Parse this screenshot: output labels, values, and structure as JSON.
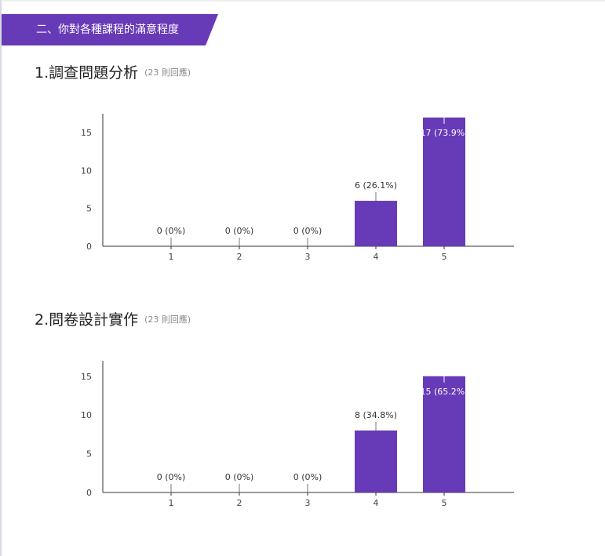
{
  "section": {
    "title": "二、你對各種課程的滿意程度"
  },
  "colors": {
    "accent": "#673ab7"
  },
  "questions": [
    {
      "title": "1.調查問題分析",
      "responses": "(23 則回應)"
    },
    {
      "title": "2.問卷設計實作",
      "responses": "(23 則回應)"
    }
  ],
  "chart_data": [
    {
      "type": "bar",
      "categories": [
        "1",
        "2",
        "3",
        "4",
        "5"
      ],
      "values": [
        0,
        0,
        0,
        6,
        17
      ],
      "labels": [
        "0 (0%)",
        "0 (0%)",
        "0 (0%)",
        "6 (26.1%)",
        "17 (73.9%)"
      ],
      "yticks": [
        0,
        5,
        10,
        15
      ],
      "ylim": [
        0,
        17.5
      ]
    },
    {
      "type": "bar",
      "categories": [
        "1",
        "2",
        "3",
        "4",
        "5"
      ],
      "values": [
        0,
        0,
        0,
        8,
        15
      ],
      "labels": [
        "0 (0%)",
        "0 (0%)",
        "0 (0%)",
        "8 (34.8%)",
        "15 (65.2%)"
      ],
      "yticks": [
        0,
        5,
        10,
        15
      ],
      "ylim": [
        0,
        17
      ]
    }
  ]
}
